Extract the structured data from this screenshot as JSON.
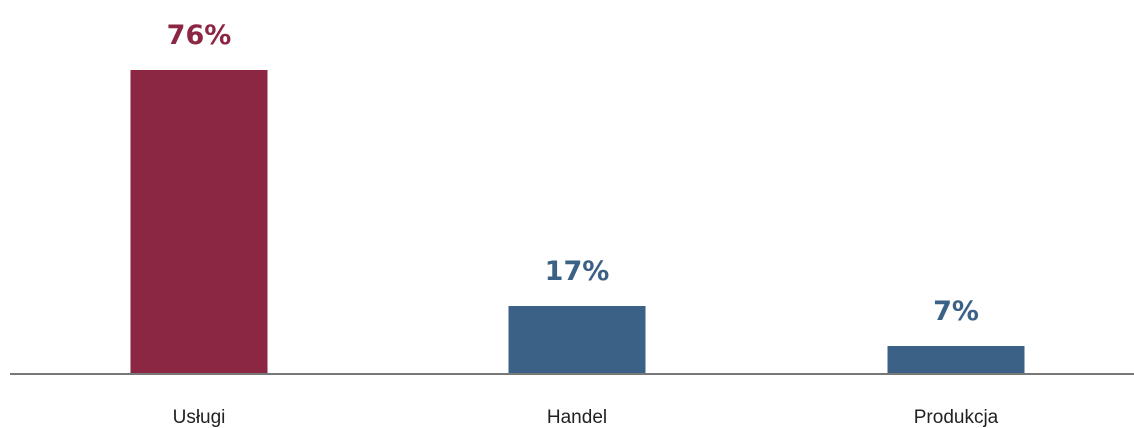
{
  "chart_data": {
    "type": "bar",
    "title": "",
    "xlabel": "",
    "ylabel": "",
    "ylim": [
      0,
      76
    ],
    "grid": false,
    "legend": "none",
    "categories": [
      "Usługi",
      "Handel",
      "Produkcja"
    ],
    "values": [
      76,
      17,
      7
    ],
    "value_labels": [
      "76%",
      "17%",
      "7%"
    ],
    "colors": [
      "#8b2742",
      "#3b6186",
      "#3b6186"
    ],
    "axis_color": "#777777"
  }
}
